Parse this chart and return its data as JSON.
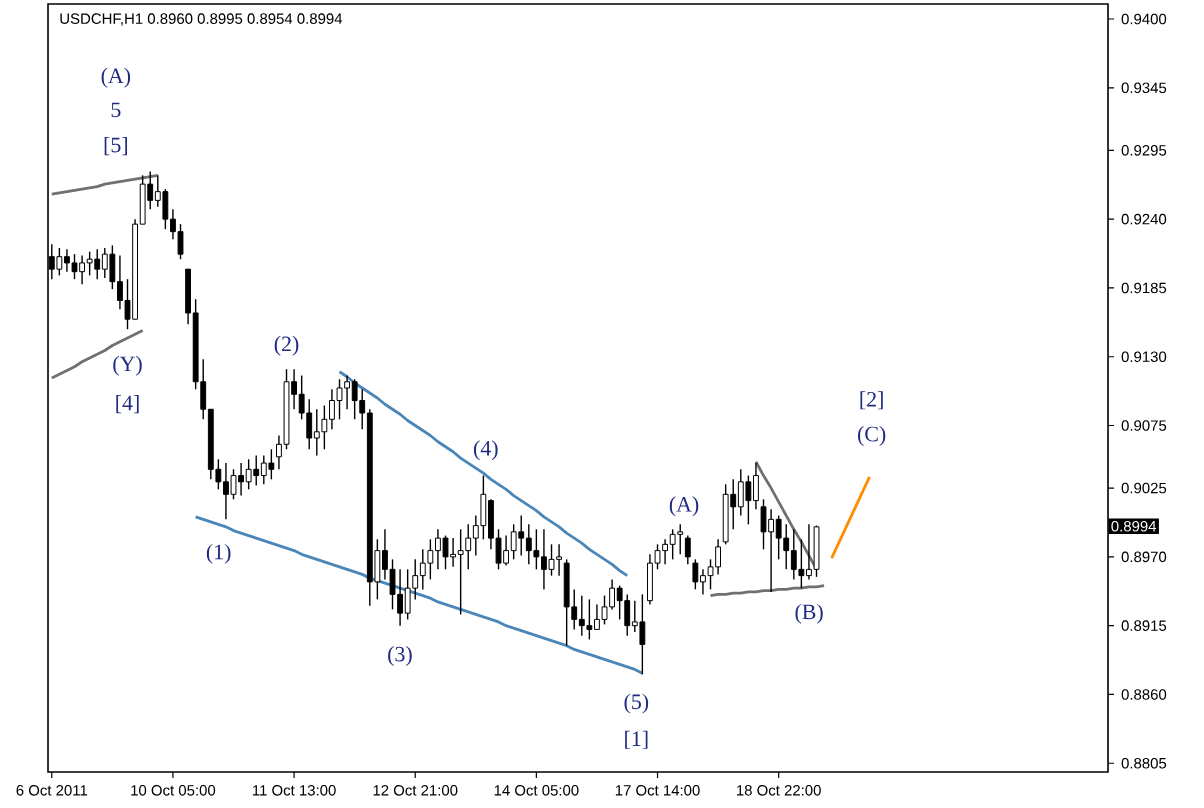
{
  "chart_data": {
    "type": "candlestick",
    "title": "USDCHF,H1  0.8960 0.8995 0.8954 0.8994",
    "categories": [
      "6 Oct 2011",
      null,
      null,
      null,
      null,
      null,
      null,
      null,
      null,
      null,
      null,
      null,
      null,
      null,
      null,
      null,
      "10 Oct 05:00",
      null,
      null,
      null,
      null,
      null,
      null,
      null,
      null,
      null,
      null,
      null,
      null,
      null,
      null,
      null,
      "11 Oct 13:00",
      null,
      null,
      null,
      null,
      null,
      null,
      null,
      null,
      null,
      null,
      null,
      null,
      null,
      null,
      null,
      "12 Oct 21:00",
      null,
      null,
      null,
      null,
      null,
      null,
      null,
      null,
      null,
      null,
      null,
      null,
      null,
      null,
      null,
      "14 Oct 05:00",
      null,
      null,
      null,
      null,
      null,
      null,
      null,
      null,
      null,
      null,
      null,
      null,
      null,
      null,
      null,
      "17 Oct 14:00",
      null,
      null,
      null,
      null,
      null,
      null,
      null,
      null,
      null,
      null,
      null,
      null,
      null,
      null,
      null,
      "18 Oct 22:00",
      null,
      null,
      null,
      null,
      null,
      null,
      null,
      null,
      null,
      null,
      null,
      null,
      null,
      null,
      null,
      null,
      null,
      null,
      null,
      null,
      null,
      null,
      null,
      null,
      null,
      null,
      null,
      null,
      null,
      null,
      null,
      null,
      null,
      null,
      null,
      null,
      null,
      null,
      null,
      null,
      null,
      null,
      null
    ],
    "ohlc": [
      [
        0.921,
        0.922,
        0.9192,
        0.92
      ],
      [
        0.92,
        0.9217,
        0.9195,
        0.921
      ],
      [
        0.921,
        0.9216,
        0.9198,
        0.9205
      ],
      [
        0.9205,
        0.9212,
        0.9192,
        0.9198
      ],
      [
        0.9198,
        0.9211,
        0.9188,
        0.9205
      ],
      [
        0.9205,
        0.9214,
        0.9195,
        0.9208
      ],
      [
        0.9208,
        0.9216,
        0.9192,
        0.92
      ],
      [
        0.92,
        0.9217,
        0.9193,
        0.9212
      ],
      [
        0.9212,
        0.9219,
        0.9184,
        0.919
      ],
      [
        0.919,
        0.9211,
        0.9168,
        0.9175
      ],
      [
        0.9175,
        0.9192,
        0.9152,
        0.916
      ],
      [
        0.916,
        0.924,
        0.916,
        0.9236
      ],
      [
        0.9236,
        0.9275,
        0.9236,
        0.9268
      ],
      [
        0.9268,
        0.9278,
        0.9248,
        0.9255
      ],
      [
        0.9255,
        0.9275,
        0.925,
        0.9262
      ],
      [
        0.9262,
        0.9264,
        0.9232,
        0.924
      ],
      [
        0.924,
        0.9248,
        0.9224,
        0.923
      ],
      [
        0.923,
        0.9236,
        0.9208,
        0.9212
      ],
      [
        0.92,
        0.92,
        0.9156,
        0.9165
      ],
      [
        0.9165,
        0.9176,
        0.9104,
        0.911
      ],
      [
        0.911,
        0.9128,
        0.908,
        0.9088
      ],
      [
        0.9088,
        0.9088,
        0.9032,
        0.904
      ],
      [
        0.904,
        0.9048,
        0.9024,
        0.903
      ],
      [
        0.903,
        0.9045,
        0.9,
        0.902
      ],
      [
        0.902,
        0.904,
        0.9016,
        0.9035
      ],
      [
        0.9035,
        0.9045,
        0.9019,
        0.903
      ],
      [
        0.903,
        0.9048,
        0.9024,
        0.904
      ],
      [
        0.904,
        0.9051,
        0.9027,
        0.9035
      ],
      [
        0.9035,
        0.9051,
        0.9028,
        0.9045
      ],
      [
        0.9045,
        0.9056,
        0.9032,
        0.904
      ],
      [
        0.905,
        0.9067,
        0.904,
        0.906
      ],
      [
        0.906,
        0.912,
        0.9056,
        0.911
      ],
      [
        0.911,
        0.912,
        0.9088,
        0.91
      ],
      [
        0.91,
        0.9115,
        0.908,
        0.9085
      ],
      [
        0.9085,
        0.9096,
        0.9056,
        0.9065
      ],
      [
        0.9065,
        0.9088,
        0.9051,
        0.907
      ],
      [
        0.907,
        0.9091,
        0.9056,
        0.908
      ],
      [
        0.908,
        0.9104,
        0.9072,
        0.9095
      ],
      [
        0.9095,
        0.9112,
        0.908,
        0.9105
      ],
      [
        0.9105,
        0.9115,
        0.9088,
        0.911
      ],
      [
        0.911,
        0.9112,
        0.908,
        0.9095
      ],
      [
        0.9095,
        0.9104,
        0.9072,
        0.9085
      ],
      [
        0.9085,
        0.9088,
        0.8931,
        0.895
      ],
      [
        0.895,
        0.8984,
        0.8936,
        0.8975
      ],
      [
        0.8975,
        0.8992,
        0.8952,
        0.896
      ],
      [
        0.896,
        0.8968,
        0.8928,
        0.894
      ],
      [
        0.894,
        0.896,
        0.8915,
        0.8925
      ],
      [
        0.8925,
        0.896,
        0.892,
        0.8945
      ],
      [
        0.8945,
        0.8968,
        0.8936,
        0.8955
      ],
      [
        0.8955,
        0.8976,
        0.8944,
        0.8965
      ],
      [
        0.8965,
        0.8984,
        0.8952,
        0.8975
      ],
      [
        0.8975,
        0.8992,
        0.896,
        0.8985
      ],
      [
        0.8985,
        0.8987,
        0.896,
        0.897
      ],
      [
        0.897,
        0.8985,
        0.8962,
        0.8972
      ],
      [
        0.8972,
        0.8992,
        0.8924,
        0.8975
      ],
      [
        0.8975,
        0.8996,
        0.896,
        0.8985
      ],
      [
        0.8985,
        0.9003,
        0.8971,
        0.8995
      ],
      [
        0.8995,
        0.9035,
        0.8984,
        0.902
      ],
      [
        0.9015,
        0.9016,
        0.8976,
        0.8985
      ],
      [
        0.8985,
        0.8992,
        0.896,
        0.8965
      ],
      [
        0.8965,
        0.8987,
        0.8963,
        0.8975
      ],
      [
        0.8975,
        0.8996,
        0.8968,
        0.899
      ],
      [
        0.899,
        0.9003,
        0.8971,
        0.8985
      ],
      [
        0.8985,
        0.8996,
        0.8964,
        0.8975
      ],
      [
        0.8975,
        0.8992,
        0.896,
        0.897
      ],
      [
        0.897,
        0.8992,
        0.8944,
        0.896
      ],
      [
        0.896,
        0.898,
        0.8955,
        0.8968
      ],
      [
        0.8968,
        0.898,
        0.8955,
        0.897
      ],
      [
        0.8965,
        0.8968,
        0.8899,
        0.893
      ],
      [
        0.893,
        0.8944,
        0.8912,
        0.892
      ],
      [
        0.892,
        0.8939,
        0.8907,
        0.8915
      ],
      [
        0.8915,
        0.8936,
        0.8904,
        0.8912
      ],
      [
        0.8912,
        0.8932,
        0.8912,
        0.892
      ],
      [
        0.892,
        0.8939,
        0.8916,
        0.893
      ],
      [
        0.893,
        0.8952,
        0.8928,
        0.8945
      ],
      [
        0.8945,
        0.8947,
        0.892,
        0.8935
      ],
      [
        0.8935,
        0.894,
        0.8907,
        0.8915
      ],
      [
        0.8915,
        0.8935,
        0.891,
        0.8918
      ],
      [
        0.8918,
        0.894,
        0.8876,
        0.89
      ],
      [
        0.8935,
        0.8972,
        0.8932,
        0.8965
      ],
      [
        0.8965,
        0.898,
        0.896,
        0.8975
      ],
      [
        0.8975,
        0.8984,
        0.8964,
        0.898
      ],
      [
        0.898,
        0.8992,
        0.8968,
        0.8988
      ],
      [
        0.8988,
        0.8996,
        0.8972,
        0.899
      ],
      [
        0.8985,
        0.8987,
        0.8964,
        0.897
      ],
      [
        0.8965,
        0.8968,
        0.8944,
        0.895
      ],
      [
        0.895,
        0.896,
        0.894,
        0.8955
      ],
      [
        0.8955,
        0.8968,
        0.8944,
        0.8962
      ],
      [
        0.8962,
        0.8984,
        0.8956,
        0.8978
      ],
      [
        0.8982,
        0.9028,
        0.898,
        0.902
      ],
      [
        0.902,
        0.9032,
        0.8992,
        0.901
      ],
      [
        0.901,
        0.904,
        0.9003,
        0.903
      ],
      [
        0.903,
        0.9035,
        0.8996,
        0.9015
      ],
      [
        0.9015,
        0.9045,
        0.9008,
        0.9035
      ],
      [
        0.901,
        0.9016,
        0.8976,
        0.899
      ],
      [
        0.899,
        0.9008,
        0.8942,
        0.9
      ],
      [
        0.9,
        0.9003,
        0.8968,
        0.8985
      ],
      [
        0.8985,
        0.8996,
        0.896,
        0.8975
      ],
      [
        0.8975,
        0.8992,
        0.8952,
        0.896
      ],
      [
        0.896,
        0.8984,
        0.8945,
        0.8955
      ],
      [
        0.8955,
        0.8996,
        0.8952,
        0.896
      ],
      [
        0.896,
        0.8995,
        0.8954,
        0.8994
      ],
      null,
      null,
      null,
      null,
      null,
      null,
      null,
      null,
      null,
      null,
      null,
      null,
      null,
      null,
      null,
      null,
      null,
      null,
      null,
      null,
      null,
      null,
      null,
      null,
      null,
      null,
      null,
      null,
      null,
      null,
      null,
      null,
      null,
      null,
      null,
      null,
      null,
      null
    ],
    "series": [
      {
        "type": "line",
        "color": "#707070",
        "values": [
          0.926,
          0.9261,
          0.9262,
          0.9263,
          0.9264,
          0.9265,
          0.9266,
          0.9268,
          0.9269,
          0.927,
          0.9271,
          0.9272,
          0.9273,
          0.9274,
          0.9275,
          null,
          null,
          null,
          null,
          null,
          null,
          null,
          null,
          null,
          null,
          null,
          null,
          null,
          null,
          null,
          null,
          null,
          null,
          null,
          null,
          null,
          null,
          null,
          null,
          null,
          null,
          null,
          null,
          null,
          null,
          null,
          null,
          null,
          null,
          null,
          null,
          null,
          null,
          null,
          null,
          null,
          null,
          null,
          null,
          null,
          null,
          null,
          null,
          null,
          null,
          null,
          null,
          null,
          null,
          null,
          null,
          null,
          null,
          null,
          null,
          null,
          null,
          null,
          null,
          null,
          null,
          null,
          null,
          null,
          null,
          null,
          null,
          null,
          null,
          null,
          null,
          null,
          null,
          null,
          null,
          null,
          null,
          null,
          null,
          null,
          null,
          null,
          null,
          null,
          null,
          null,
          null,
          null,
          null,
          null,
          null,
          null,
          null,
          null,
          null,
          null,
          null,
          null,
          null,
          null,
          null,
          null,
          null,
          null,
          null,
          null,
          null,
          null,
          null,
          null,
          null,
          null,
          null,
          null,
          null,
          null,
          null,
          null,
          null,
          null
        ]
      },
      {
        "type": "line",
        "color": "#707070",
        "values": [
          0.9113,
          0.9116,
          0.9119,
          0.9122,
          0.9126,
          0.9129,
          0.9132,
          0.9135,
          0.9139,
          0.9142,
          0.9145,
          0.9148,
          0.9151,
          null,
          null,
          null,
          null,
          null,
          null,
          null,
          null,
          null,
          null,
          null,
          null,
          null,
          null,
          null,
          null,
          null,
          null,
          null,
          null,
          null,
          null,
          null,
          null,
          null,
          null,
          null,
          null,
          null,
          null,
          null,
          null,
          null,
          null,
          null,
          null,
          null,
          null,
          null,
          null,
          null,
          null,
          null,
          null,
          null,
          null,
          null,
          null,
          null,
          null,
          null,
          null,
          null,
          null,
          null,
          null,
          null,
          null,
          null,
          null,
          null,
          null,
          null,
          null,
          null,
          null,
          null,
          null,
          null,
          null,
          null,
          null,
          null,
          null,
          null,
          null,
          null,
          null,
          null,
          null,
          null,
          null,
          null,
          null,
          null,
          null,
          null,
          null,
          null,
          null,
          null,
          null,
          null,
          null,
          null,
          null,
          null,
          null,
          null,
          null,
          null,
          null,
          null,
          null,
          null,
          null,
          null,
          null,
          null,
          null,
          null,
          null,
          null,
          null,
          null,
          null,
          null,
          null,
          null,
          null,
          null,
          null,
          null,
          null,
          null,
          null,
          null
        ]
      },
      {
        "type": "line",
        "color": "#4a86b8",
        "values": [
          null,
          null,
          null,
          null,
          null,
          null,
          null,
          null,
          null,
          null,
          null,
          null,
          null,
          null,
          null,
          null,
          null,
          null,
          null,
          0.9002,
          0.9,
          0.8998,
          0.8996,
          0.8994,
          0.8991,
          0.8989,
          0.8987,
          0.8985,
          0.8983,
          0.8981,
          0.8979,
          0.8977,
          0.8975,
          0.8972,
          0.897,
          0.8968,
          0.8966,
          0.8964,
          0.8962,
          0.896,
          0.8958,
          0.8956,
          0.8953,
          0.8951,
          0.8949,
          0.8947,
          0.8945,
          0.8943,
          0.8941,
          0.8939,
          0.8937,
          0.8934,
          0.8932,
          0.893,
          0.8928,
          0.8926,
          0.8924,
          0.8922,
          0.892,
          0.8918,
          0.8915,
          0.8913,
          0.8911,
          0.8909,
          0.8907,
          0.8905,
          0.8903,
          0.8901,
          0.8899,
          0.8896,
          0.8894,
          0.8892,
          0.889,
          0.8888,
          0.8886,
          0.8884,
          0.8882,
          0.888,
          0.8877,
          null,
          null,
          null,
          null,
          null,
          null,
          null,
          null,
          null,
          null,
          null,
          null,
          null,
          null,
          null,
          null,
          null,
          null,
          null,
          null,
          null,
          null,
          null,
          null,
          null,
          null,
          null,
          null,
          null,
          null,
          null,
          null,
          null,
          null,
          null,
          null,
          null,
          null,
          null,
          null,
          null,
          null,
          null,
          null,
          null,
          null,
          null,
          null,
          null,
          null,
          null,
          null,
          null,
          null,
          null,
          null,
          null,
          null,
          null,
          null,
          null
        ]
      },
      {
        "type": "line",
        "color": "#4a86b8",
        "values": [
          null,
          null,
          null,
          null,
          null,
          null,
          null,
          null,
          null,
          null,
          null,
          null,
          null,
          null,
          null,
          null,
          null,
          null,
          null,
          null,
          null,
          null,
          null,
          null,
          null,
          null,
          null,
          null,
          null,
          null,
          null,
          null,
          null,
          null,
          null,
          null,
          null,
          null,
          0.9118,
          0.9114,
          0.9109,
          0.9105,
          0.9101,
          0.9097,
          0.9092,
          0.9088,
          0.9084,
          0.9079,
          0.9075,
          0.9071,
          0.9067,
          0.9062,
          0.9058,
          0.9054,
          0.9049,
          0.9045,
          0.9041,
          0.9037,
          0.9032,
          0.9028,
          0.9024,
          0.9019,
          0.9015,
          0.9011,
          0.9007,
          0.9002,
          0.8998,
          0.8994,
          0.8989,
          0.8985,
          0.8981,
          0.8976,
          0.8972,
          0.8968,
          0.8964,
          0.8959,
          0.8955,
          null,
          null,
          null,
          null,
          null,
          null,
          null,
          null,
          null,
          null,
          null,
          null,
          null,
          null,
          null,
          null,
          null,
          null,
          null,
          null,
          null,
          null,
          null,
          null,
          null,
          null,
          null,
          null,
          null,
          null,
          null,
          null,
          null,
          null,
          null,
          null,
          null,
          null,
          null,
          null,
          null,
          null,
          null,
          null,
          null,
          null,
          null,
          null,
          null,
          null,
          null,
          null,
          null,
          null,
          null,
          null,
          null,
          null,
          null,
          null,
          null,
          null,
          null
        ]
      },
      {
        "type": "line",
        "color": "#707070",
        "values": [
          null,
          null,
          null,
          null,
          null,
          null,
          null,
          null,
          null,
          null,
          null,
          null,
          null,
          null,
          null,
          null,
          null,
          null,
          null,
          null,
          null,
          null,
          null,
          null,
          null,
          null,
          null,
          null,
          null,
          null,
          null,
          null,
          null,
          null,
          null,
          null,
          null,
          null,
          null,
          null,
          null,
          null,
          null,
          null,
          null,
          null,
          null,
          null,
          null,
          null,
          null,
          null,
          null,
          null,
          null,
          null,
          null,
          null,
          null,
          null,
          null,
          null,
          null,
          null,
          null,
          null,
          null,
          null,
          null,
          null,
          null,
          null,
          null,
          null,
          null,
          null,
          null,
          null,
          null,
          null,
          null,
          null,
          null,
          null,
          null,
          null,
          null,
          0.8939,
          0.894,
          0.894,
          0.8941,
          0.8941,
          0.8942,
          0.8942,
          0.8943,
          0.8943,
          0.8944,
          0.8944,
          0.8945,
          0.8945,
          0.8946,
          0.8946,
          0.8947,
          null,
          null,
          null,
          null,
          null,
          null,
          null,
          null,
          null,
          null,
          null,
          null,
          null,
          null,
          null,
          null,
          null,
          null,
          null,
          null,
          null,
          null,
          null,
          null,
          null,
          null,
          null,
          null,
          null,
          null,
          null,
          null,
          null,
          null,
          null,
          null,
          null
        ]
      },
      {
        "type": "line",
        "color": "#707070",
        "values": [
          null,
          null,
          null,
          null,
          null,
          null,
          null,
          null,
          null,
          null,
          null,
          null,
          null,
          null,
          null,
          null,
          null,
          null,
          null,
          null,
          null,
          null,
          null,
          null,
          null,
          null,
          null,
          null,
          null,
          null,
          null,
          null,
          null,
          null,
          null,
          null,
          null,
          null,
          null,
          null,
          null,
          null,
          null,
          null,
          null,
          null,
          null,
          null,
          null,
          null,
          null,
          null,
          null,
          null,
          null,
          null,
          null,
          null,
          null,
          null,
          null,
          null,
          null,
          null,
          null,
          null,
          null,
          null,
          null,
          null,
          null,
          null,
          null,
          null,
          null,
          null,
          null,
          null,
          null,
          null,
          null,
          null,
          null,
          null,
          null,
          null,
          null,
          null,
          null,
          null,
          null,
          null,
          null,
          0.9046,
          0.9035,
          0.9025,
          0.9014,
          0.9003,
          0.8992,
          0.8982,
          0.8971,
          0.896,
          null,
          null,
          null,
          null,
          null,
          null,
          null,
          null,
          null,
          null,
          null,
          null,
          null,
          null,
          null,
          null,
          null,
          null,
          null,
          null,
          null,
          null,
          null,
          null,
          null,
          null,
          null,
          null,
          null,
          null,
          null,
          null,
          null,
          null,
          null,
          null,
          null,
          null
        ]
      },
      {
        "type": "line",
        "color": "#ff8c00",
        "values": [
          null,
          null,
          null,
          null,
          null,
          null,
          null,
          null,
          null,
          null,
          null,
          null,
          null,
          null,
          null,
          null,
          null,
          null,
          null,
          null,
          null,
          null,
          null,
          null,
          null,
          null,
          null,
          null,
          null,
          null,
          null,
          null,
          null,
          null,
          null,
          null,
          null,
          null,
          null,
          null,
          null,
          null,
          null,
          null,
          null,
          null,
          null,
          null,
          null,
          null,
          null,
          null,
          null,
          null,
          null,
          null,
          null,
          null,
          null,
          null,
          null,
          null,
          null,
          null,
          null,
          null,
          null,
          null,
          null,
          null,
          null,
          null,
          null,
          null,
          null,
          null,
          null,
          null,
          null,
          null,
          null,
          null,
          null,
          null,
          null,
          null,
          null,
          null,
          null,
          null,
          null,
          null,
          null,
          null,
          null,
          null,
          null,
          null,
          null,
          null,
          null,
          null,
          null,
          0.8969,
          0.8982,
          0.8995,
          0.9008,
          0.9021,
          0.9034,
          null,
          null,
          null,
          null,
          null,
          null,
          null,
          null,
          null,
          null,
          null,
          null,
          null,
          null,
          null,
          null,
          null,
          null,
          null,
          null,
          null,
          null,
          null,
          null,
          null,
          null,
          null,
          null,
          null,
          null,
          null
        ]
      }
    ],
    "annotations": [
      "(A)",
      "5",
      "[5]",
      "(Y)",
      "[4]",
      "(1)",
      "(2)",
      "(3)",
      "(4)",
      "(5)",
      "[1]",
      "(A)",
      "(B)",
      "[2]",
      "(C)",
      "0.8994"
    ],
    "ylim": [
      0.8798,
      0.9412
    ],
    "yticks": [
      {
        "value": 0.94,
        "label": "0.9400"
      },
      {
        "value": 0.9345,
        "label": "0.9345"
      },
      {
        "value": 0.9295,
        "label": "0.9295"
      },
      {
        "value": 0.924,
        "label": "0.9240"
      },
      {
        "value": 0.9185,
        "label": "0.9185"
      },
      {
        "value": 0.913,
        "label": "0.9130"
      },
      {
        "value": 0.9075,
        "label": "0.9075"
      },
      {
        "value": 0.9025,
        "label": "0.9025"
      },
      {
        "value": 0.897,
        "label": "0.8970"
      },
      {
        "value": 0.8915,
        "label": "0.8915"
      },
      {
        "value": 0.886,
        "label": "0.8860"
      },
      {
        "value": 0.8805,
        "label": "0.8805"
      }
    ]
  }
}
